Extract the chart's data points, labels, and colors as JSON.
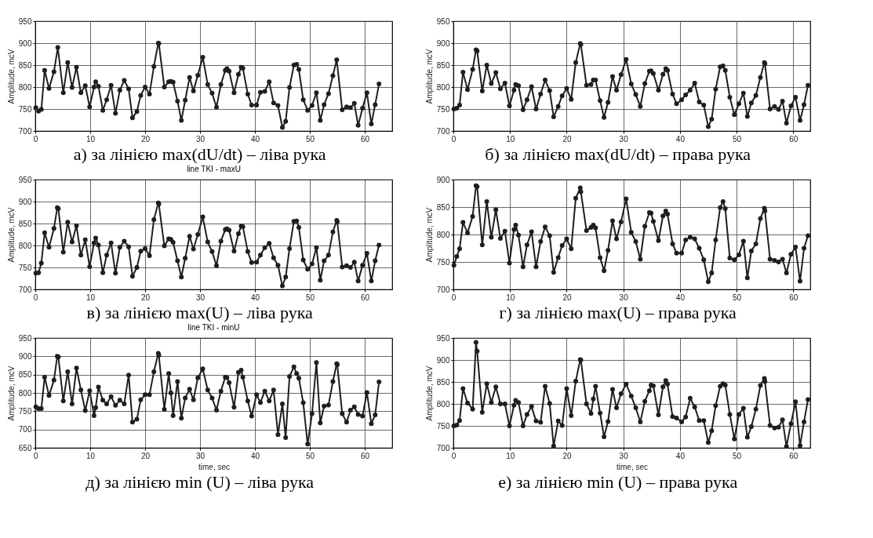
{
  "chart_data": [
    {
      "type": "line",
      "title": "а) за лінією max(dU/dt) – ліва рука",
      "ylabel": "Amplitude, mcV",
      "color": "#1e1e1e",
      "marker": "circle",
      "grid": true,
      "xlim": [
        0,
        65
      ],
      "xticks": [
        0,
        10,
        20,
        30,
        40,
        50,
        60
      ],
      "ylim": [
        700,
        950
      ],
      "yticks": [
        700,
        750,
        800,
        850,
        900,
        950
      ],
      "x": [
        0.1,
        0.6,
        1.1,
        1.7,
        2.5,
        3.4,
        4.1,
        5.1,
        5.9,
        6.7,
        7.5,
        8.3,
        9.1,
        9.9,
        10.7,
        11.0,
        11.5,
        12.3,
        13.0,
        13.8,
        14.6,
        15.4,
        16.2,
        17.0,
        17.7,
        18.5,
        19.2,
        20.0,
        20.8,
        21.6,
        22.4,
        22.5,
        23.5,
        24.3,
        24.7,
        25.1,
        25.9,
        26.6,
        27.3,
        28.1,
        28.8,
        29.6,
        30.5,
        31.4,
        32.2,
        33.0,
        33.8,
        34.6,
        34.9,
        35.3,
        36.2,
        37.0,
        37.5,
        37.8,
        38.7,
        39.4,
        40.3,
        41.0,
        41.8,
        42.6,
        43.4,
        44.2,
        45.0,
        45.6,
        46.3,
        47.1,
        47.6,
        48.0,
        48.8,
        49.6,
        50.4,
        51.2,
        51.9,
        52.6,
        53.4,
        54.2,
        54.9,
        55.9,
        56.7,
        57.4,
        58.1,
        58.8,
        59.6,
        60.4,
        61.2,
        61.9,
        62.6
      ],
      "values": [
        753,
        745,
        749,
        838,
        797,
        835,
        890,
        787,
        856,
        799,
        845,
        787,
        803,
        755,
        800,
        812,
        802,
        747,
        771,
        804,
        740,
        793,
        815,
        796,
        730,
        744,
        781,
        800,
        784,
        847,
        900,
        899,
        800,
        812,
        813,
        811,
        768,
        724,
        770,
        822,
        791,
        827,
        868,
        806,
        786,
        754,
        806,
        838,
        842,
        836,
        787,
        829,
        845,
        843,
        784,
        759,
        759,
        788,
        790,
        812,
        764,
        758,
        708,
        722,
        799,
        850,
        852,
        840,
        771,
        747,
        758,
        787,
        724,
        760,
        785,
        826,
        862,
        748,
        755,
        753,
        763,
        713,
        752,
        787,
        716,
        760,
        807
      ]
    },
    {
      "type": "line",
      "title": "б) за лінією max(dU/dt) – права рука",
      "ylabel": "Amplitude, mcV",
      "color": "#1e1e1e",
      "marker": "circle",
      "grid": true,
      "xlim": [
        0,
        63
      ],
      "xticks": [
        0,
        10,
        20,
        30,
        40,
        50,
        60
      ],
      "ylim": [
        700,
        950
      ],
      "yticks": [
        700,
        750,
        800,
        850,
        900,
        950
      ],
      "x": [
        0.1,
        0.6,
        1.1,
        1.7,
        2.5,
        3.4,
        4.0,
        4.2,
        5.1,
        5.9,
        6.7,
        7.5,
        8.3,
        9.1,
        9.9,
        10.7,
        11.0,
        11.5,
        12.3,
        13.0,
        13.8,
        14.6,
        15.4,
        16.2,
        17.0,
        17.7,
        18.5,
        19.2,
        20.0,
        20.8,
        21.6,
        22.4,
        22.5,
        23.5,
        24.3,
        24.7,
        25.1,
        25.9,
        26.6,
        27.3,
        28.1,
        28.8,
        29.6,
        30.5,
        31.4,
        32.2,
        33.0,
        33.8,
        34.6,
        34.9,
        35.3,
        36.2,
        37.0,
        37.5,
        37.8,
        38.7,
        39.4,
        40.3,
        41.0,
        41.8,
        42.6,
        43.4,
        44.2,
        45.0,
        45.6,
        46.3,
        47.1,
        47.6,
        48.0,
        48.8,
        49.6,
        50.4,
        51.2,
        51.9,
        52.6,
        53.4,
        54.2,
        54.9,
        55.0,
        55.9,
        56.7,
        57.4,
        58.1,
        58.8,
        59.6,
        60.4,
        61.2,
        61.9,
        62.6
      ],
      "values": [
        750,
        752,
        759,
        834,
        794,
        840,
        885,
        882,
        791,
        850,
        808,
        833,
        796,
        809,
        757,
        793,
        806,
        803,
        748,
        771,
        801,
        750,
        784,
        816,
        792,
        732,
        756,
        780,
        797,
        772,
        856,
        899,
        897,
        804,
        806,
        816,
        816,
        769,
        731,
        765,
        824,
        793,
        828,
        863,
        807,
        783,
        756,
        808,
        836,
        837,
        831,
        793,
        829,
        842,
        838,
        784,
        762,
        771,
        782,
        793,
        809,
        766,
        759,
        710,
        727,
        795,
        846,
        848,
        838,
        777,
        737,
        762,
        786,
        733,
        764,
        781,
        822,
        856,
        853,
        750,
        756,
        749,
        768,
        718,
        757,
        777,
        724,
        760,
        804
      ]
    },
    {
      "type": "line",
      "title": "в) за лінією max(U) – ліва рука",
      "subtitle": "line TKI - maxU",
      "ylabel": "Amplitude, mcV",
      "color": "#1e1e1e",
      "marker": "circle",
      "grid": true,
      "xlim": [
        0,
        65
      ],
      "xticks": [
        0,
        10,
        20,
        30,
        40,
        50,
        60
      ],
      "ylim": [
        700,
        950
      ],
      "yticks": [
        700,
        750,
        800,
        850,
        900,
        950
      ],
      "x": [
        0.1,
        0.6,
        1.1,
        1.7,
        2.5,
        3.4,
        4.0,
        4.2,
        5.1,
        5.9,
        6.7,
        7.5,
        8.3,
        9.1,
        9.9,
        10.7,
        11.0,
        11.5,
        12.3,
        13.0,
        13.8,
        14.6,
        15.4,
        16.2,
        17.0,
        17.7,
        18.5,
        19.2,
        20.0,
        20.8,
        21.6,
        22.4,
        22.5,
        23.5,
        24.3,
        24.7,
        25.1,
        25.9,
        26.6,
        27.3,
        28.1,
        28.8,
        29.6,
        30.5,
        31.4,
        32.2,
        33.0,
        33.8,
        34.6,
        34.9,
        35.3,
        36.2,
        37.0,
        37.5,
        37.8,
        38.7,
        39.4,
        40.3,
        41.0,
        41.8,
        42.6,
        43.4,
        44.2,
        45.0,
        45.6,
        46.3,
        47.1,
        47.6,
        48.0,
        48.8,
        49.6,
        50.4,
        51.2,
        51.9,
        52.6,
        53.4,
        54.2,
        54.9,
        55.0,
        55.9,
        56.7,
        57.4,
        58.1,
        58.8,
        59.6,
        60.4,
        61.2,
        61.9,
        62.6
      ],
      "values": [
        737,
        738,
        760,
        829,
        796,
        839,
        886,
        884,
        785,
        853,
        808,
        845,
        778,
        813,
        752,
        806,
        817,
        801,
        738,
        778,
        806,
        737,
        796,
        810,
        797,
        730,
        750,
        787,
        793,
        777,
        859,
        897,
        894,
        799,
        815,
        814,
        807,
        765,
        728,
        771,
        821,
        792,
        825,
        865,
        808,
        786,
        754,
        810,
        836,
        838,
        835,
        787,
        827,
        844,
        843,
        786,
        761,
        762,
        778,
        795,
        805,
        772,
        755,
        708,
        728,
        793,
        855,
        856,
        841,
        767,
        746,
        758,
        795,
        721,
        765,
        778,
        831,
        857,
        854,
        751,
        754,
        750,
        762,
        719,
        755,
        782,
        719,
        765,
        801
      ]
    },
    {
      "type": "line",
      "title": "г) за лінією max(U) – права рука",
      "ylabel": "Amplitude, mcV",
      "color": "#1e1e1e",
      "marker": "circle",
      "grid": true,
      "xlim": [
        0,
        63
      ],
      "xticks": [
        0,
        10,
        20,
        30,
        40,
        50,
        60
      ],
      "ylim": [
        700,
        900
      ],
      "yticks": [
        700,
        750,
        800,
        850,
        900
      ],
      "x": [
        0.1,
        0.6,
        1.1,
        1.7,
        2.5,
        3.4,
        4.0,
        4.2,
        5.1,
        5.9,
        6.7,
        7.5,
        8.3,
        9.1,
        9.9,
        10.7,
        11.0,
        11.5,
        12.3,
        13.0,
        13.8,
        14.6,
        15.4,
        16.2,
        17.0,
        17.7,
        18.5,
        19.2,
        20.0,
        20.8,
        21.6,
        22.4,
        22.5,
        23.5,
        24.3,
        24.7,
        25.1,
        25.9,
        26.6,
        27.3,
        28.1,
        28.8,
        29.6,
        30.5,
        31.4,
        32.2,
        33.0,
        33.8,
        34.6,
        34.9,
        35.3,
        36.2,
        37.0,
        37.5,
        37.8,
        38.7,
        39.4,
        40.3,
        41.0,
        41.8,
        42.6,
        43.4,
        44.2,
        45.0,
        45.6,
        46.3,
        47.1,
        47.6,
        48.0,
        48.8,
        49.6,
        50.4,
        51.2,
        51.9,
        52.6,
        53.4,
        54.2,
        54.9,
        55.0,
        55.9,
        56.7,
        57.4,
        58.1,
        58.8,
        59.6,
        60.4,
        61.2,
        61.9,
        62.6
      ],
      "values": [
        744,
        760,
        774,
        822,
        803,
        833,
        889,
        887,
        781,
        860,
        795,
        845,
        793,
        806,
        748,
        809,
        817,
        799,
        741,
        781,
        805,
        741,
        787,
        814,
        798,
        731,
        758,
        780,
        792,
        774,
        866,
        885,
        878,
        807,
        813,
        817,
        812,
        758,
        734,
        771,
        825,
        792,
        823,
        865,
        804,
        787,
        755,
        815,
        840,
        839,
        824,
        789,
        834,
        843,
        837,
        783,
        766,
        766,
        790,
        795,
        792,
        775,
        754,
        714,
        730,
        790,
        849,
        860,
        847,
        757,
        754,
        763,
        788,
        721,
        770,
        783,
        829,
        848,
        843,
        755,
        753,
        750,
        755,
        730,
        764,
        777,
        715,
        775,
        798
      ]
    },
    {
      "type": "line",
      "title": "д) за лінією min (U) – ліва рука",
      "subtitle": "line TKI - minU",
      "xlabel": "time, sec",
      "ylabel": "Amplitude, mcV",
      "color": "#1e1e1e",
      "marker": "circle",
      "grid": true,
      "xlim": [
        0,
        65
      ],
      "xticks": [
        0,
        10,
        20,
        30,
        40,
        50,
        60
      ],
      "ylim": [
        650,
        950
      ],
      "yticks": [
        650,
        700,
        750,
        800,
        850,
        900,
        950
      ],
      "x": [
        0.1,
        0.6,
        1.1,
        1.7,
        2.5,
        3.4,
        4.0,
        4.2,
        5.1,
        5.9,
        6.7,
        7.5,
        8.3,
        9.1,
        9.9,
        10.7,
        11.0,
        11.5,
        12.3,
        13.0,
        13.8,
        14.6,
        15.4,
        16.2,
        17.0,
        17.7,
        18.5,
        19.2,
        20.0,
        20.8,
        21.6,
        22.4,
        22.5,
        23.5,
        24.3,
        24.7,
        25.1,
        25.9,
        26.6,
        27.3,
        28.1,
        28.8,
        29.6,
        30.5,
        31.4,
        32.2,
        33.0,
        33.8,
        34.6,
        34.9,
        35.3,
        36.2,
        37.0,
        37.5,
        37.8,
        38.7,
        39.4,
        40.3,
        41.0,
        41.8,
        42.6,
        43.4,
        44.2,
        45.0,
        45.6,
        46.3,
        47.1,
        47.6,
        48.0,
        48.8,
        49.6,
        50.4,
        51.2,
        51.9,
        52.6,
        53.4,
        54.2,
        54.9,
        55.0,
        55.9,
        56.7,
        57.4,
        58.1,
        58.8,
        59.6,
        60.4,
        61.2,
        61.9,
        62.6
      ],
      "values": [
        762,
        757,
        757,
        843,
        793,
        835,
        900,
        898,
        778,
        858,
        770,
        868,
        808,
        752,
        806,
        738,
        760,
        816,
        780,
        770,
        790,
        766,
        780,
        770,
        849,
        720,
        728,
        781,
        795,
        795,
        858,
        908,
        903,
        755,
        853,
        800,
        738,
        831,
        731,
        786,
        810,
        781,
        841,
        866,
        808,
        786,
        753,
        805,
        843,
        842,
        828,
        761,
        856,
        862,
        843,
        778,
        737,
        795,
        774,
        805,
        778,
        808,
        686,
        770,
        678,
        845,
        871,
        853,
        840,
        773,
        660,
        743,
        883,
        718,
        764,
        767,
        831,
        880,
        877,
        743,
        720,
        753,
        762,
        741,
        737,
        801,
        716,
        740,
        830
      ]
    },
    {
      "type": "line",
      "title": "е) за лінією min (U) – права рука",
      "xlabel": "time, sec",
      "ylabel": "Amplitude, mcV",
      "color": "#1e1e1e",
      "marker": "circle",
      "grid": true,
      "xlim": [
        0,
        63
      ],
      "xticks": [
        0,
        10,
        20,
        30,
        40,
        50,
        60
      ],
      "ylim": [
        700,
        950
      ],
      "yticks": [
        700,
        750,
        800,
        850,
        900,
        950
      ],
      "x": [
        0.1,
        0.6,
        1.1,
        1.7,
        2.5,
        3.4,
        4.0,
        4.2,
        5.1,
        5.9,
        6.7,
        7.5,
        8.3,
        9.1,
        9.9,
        10.7,
        11.0,
        11.5,
        12.3,
        13.0,
        13.8,
        14.6,
        15.4,
        16.2,
        17.0,
        17.7,
        18.5,
        19.2,
        20.0,
        20.8,
        21.6,
        22.4,
        22.5,
        23.5,
        24.3,
        24.7,
        25.1,
        25.9,
        26.6,
        27.3,
        28.1,
        28.8,
        29.6,
        30.5,
        31.4,
        32.2,
        33.0,
        33.8,
        34.6,
        34.9,
        35.3,
        36.2,
        37.0,
        37.5,
        37.8,
        38.7,
        39.4,
        40.3,
        41.0,
        41.8,
        42.6,
        43.4,
        44.2,
        45.0,
        45.6,
        46.3,
        47.1,
        47.6,
        48.0,
        48.8,
        49.6,
        50.4,
        51.2,
        51.9,
        52.6,
        53.4,
        54.2,
        54.9,
        55.0,
        55.9,
        56.7,
        57.4,
        58.1,
        58.8,
        59.6,
        60.4,
        61.2,
        61.9,
        62.6
      ],
      "values": [
        750,
        752,
        762,
        835,
        802,
        788,
        940,
        920,
        781,
        846,
        803,
        839,
        800,
        800,
        750,
        797,
        808,
        803,
        750,
        776,
        794,
        761,
        758,
        840,
        801,
        704,
        761,
        751,
        835,
        773,
        852,
        901,
        900,
        800,
        778,
        811,
        840,
        779,
        725,
        760,
        833,
        791,
        823,
        845,
        818,
        791,
        759,
        806,
        830,
        843,
        841,
        775,
        839,
        853,
        845,
        771,
        768,
        759,
        770,
        813,
        793,
        762,
        762,
        712,
        739,
        796,
        840,
        846,
        843,
        776,
        720,
        776,
        790,
        724,
        748,
        788,
        842,
        858,
        851,
        751,
        745,
        747,
        764,
        703,
        755,
        805,
        705,
        759,
        810
      ]
    }
  ]
}
